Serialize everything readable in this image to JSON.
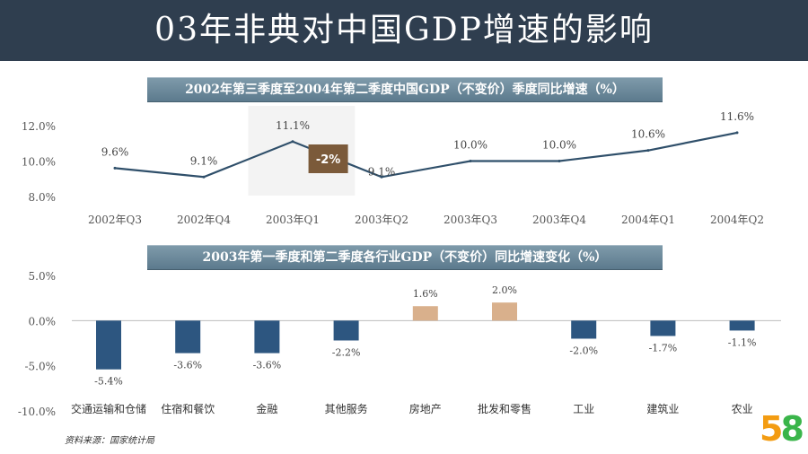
{
  "page_title": "03年非典对中国GDP增速的影响",
  "source_note": "资料来源：国家统计局",
  "logo": {
    "digit1": "5",
    "digit2": "8"
  },
  "chart_data": [
    {
      "type": "line",
      "title": "2002年第三季度至2004年第二季度中国GDP（不变价）季度同比增速（%）",
      "categories": [
        "2002年Q3",
        "2002年Q4",
        "2003年Q1",
        "2003年Q2",
        "2003年Q3",
        "2003年Q4",
        "2004年Q1",
        "2004年Q2"
      ],
      "values": [
        9.6,
        9.1,
        11.1,
        9.1,
        10.0,
        10.0,
        10.6,
        11.6
      ],
      "value_labels": [
        "9.6%",
        "9.1%",
        "11.1%",
        "9.1%",
        "10.0%",
        "10.0%",
        "10.6%",
        "11.6%"
      ],
      "yticks": [
        "12.0%",
        "10.0%",
        "8.0%"
      ],
      "ylim": [
        8.0,
        12.0
      ],
      "annotation": {
        "text": "-2%",
        "color": "#7b5a3a"
      },
      "line_color": "#2f4f6a"
    },
    {
      "type": "bar",
      "title": "2003年第一季度和第二季度各行业GDP（不变价）同比增速变化（%）",
      "categories": [
        "交通运输和仓储",
        "住宿和餐饮",
        "金融",
        "其他服务",
        "房地产",
        "批发和零售",
        "工业",
        "建筑业",
        "农业"
      ],
      "values": [
        -5.4,
        -3.6,
        -3.6,
        -2.2,
        1.6,
        2.0,
        -2.0,
        -1.7,
        -1.1
      ],
      "value_labels": [
        "-5.4%",
        "-3.6%",
        "-3.6%",
        "-2.2%",
        "1.6%",
        "2.0%",
        "-2.0%",
        "-1.7%",
        "-1.1%"
      ],
      "yticks": [
        "5.0%",
        "0.0%",
        "-5.0%",
        "-10.0%"
      ],
      "ylim": [
        -10.0,
        5.0
      ],
      "negative_color": "#2d5680",
      "positive_color": "#d9b08c"
    }
  ]
}
